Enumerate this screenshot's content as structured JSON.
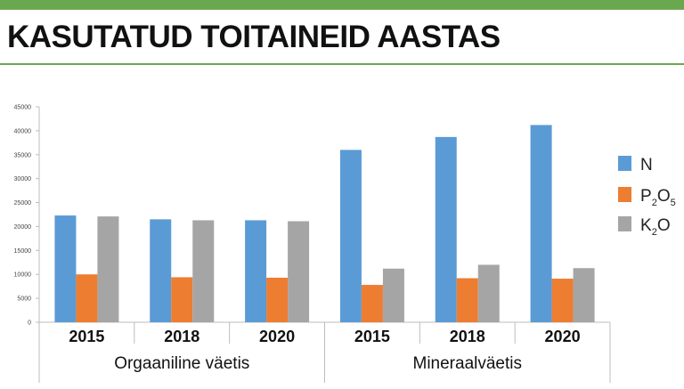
{
  "header": {
    "title": "KASUTATUD TOITAINEID AASTAS"
  },
  "colors": {
    "accent": "#6aa84f",
    "N": "#5b9bd5",
    "P2O5": "#ed7d31",
    "K2O": "#a5a5a5"
  },
  "chart_data": {
    "type": "bar",
    "title": "KASUTATUD TOITAINEID AASTAS",
    "xlabel": "",
    "ylabel": "",
    "ylim": [
      0,
      45000
    ],
    "yticks": [
      "0",
      "5000",
      "10000",
      "15000",
      "20000",
      "25000",
      "30000",
      "35000",
      "40000",
      "45000"
    ],
    "grid": false,
    "legend_position": "right",
    "groups": [
      "Orgaaniline väetis",
      "Mineraalväetis"
    ],
    "categories": [
      "2015",
      "2018",
      "2020",
      "2015",
      "2018",
      "2020"
    ],
    "series": [
      {
        "name": "N",
        "legend_main": "N",
        "legend_sub": "",
        "legend_tail": "",
        "values": [
          22300,
          21500,
          21300,
          36000,
          38700,
          41200
        ]
      },
      {
        "name": "P2O5",
        "legend_main": "P",
        "legend_sub": "2",
        "legend_tail": "O",
        "legend_sub2": "5",
        "values": [
          10000,
          9400,
          9300,
          7800,
          9200,
          9100
        ]
      },
      {
        "name": "K2O",
        "legend_main": "K",
        "legend_sub": "2",
        "legend_tail": "O",
        "legend_sub2": "",
        "values": [
          22100,
          21300,
          21100,
          11200,
          12000,
          11300
        ]
      }
    ]
  }
}
